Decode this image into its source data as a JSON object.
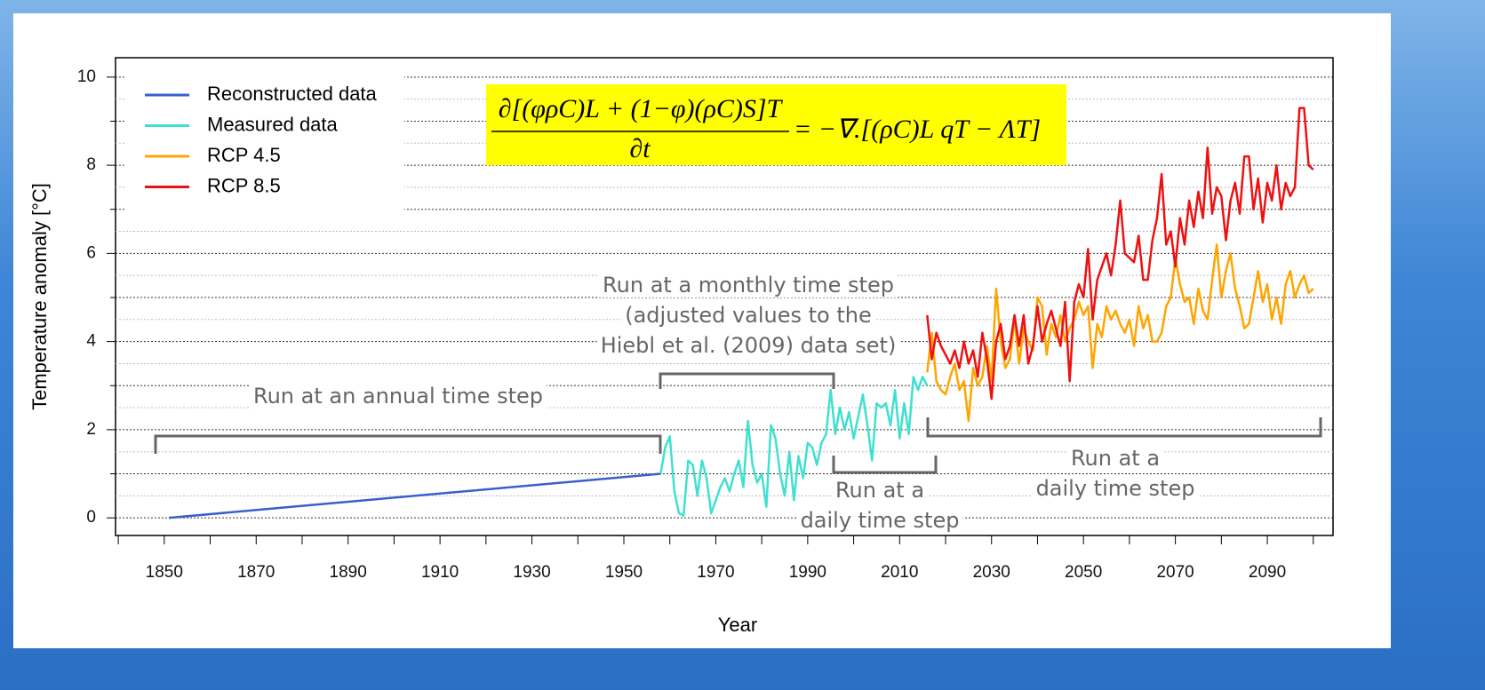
{
  "chart_data": {
    "type": "line",
    "xlabel": "Year",
    "ylabel": "Temperature anomaly [°C]",
    "xlim": [
      1839.4,
      2104.3
    ],
    "ylim": [
      -0.4,
      10.44
    ],
    "xticks": [
      1850,
      1870,
      1890,
      1910,
      1930,
      1950,
      1970,
      1990,
      2010,
      2030,
      2050,
      2070,
      2090
    ],
    "xminorticks": [
      1840,
      1860,
      1880,
      1900,
      1920,
      1940,
      1960,
      1980,
      2000,
      2020,
      2040,
      2060,
      2080,
      2100
    ],
    "yticks": [
      0,
      2,
      4,
      6,
      8,
      10
    ],
    "yminorticks": [
      1,
      3,
      5,
      7,
      9
    ],
    "yminorgrid": [
      0.5,
      1.5,
      2.5,
      3.5,
      4.5,
      5.5,
      6.5,
      7.5,
      8.5,
      9.5
    ],
    "grid": true,
    "legend_position": "upper-left",
    "series": [
      {
        "name": "Reconstructed data",
        "color": "#3a5fcd",
        "x": [
          1851,
          1958
        ],
        "values": [
          0,
          1.0
        ]
      },
      {
        "name": "Measured data",
        "color": "#40e0d0",
        "x": [
          1958,
          1959,
          1960,
          1961,
          1962,
          1963,
          1964,
          1965,
          1966,
          1967,
          1968,
          1969,
          1970,
          1971,
          1972,
          1973,
          1974,
          1975,
          1976,
          1977,
          1978,
          1979,
          1980,
          1981,
          1982,
          1983,
          1984,
          1985,
          1986,
          1987,
          1988,
          1989,
          1990,
          1991,
          1992,
          1993,
          1994,
          1995,
          1996,
          1997,
          1998,
          1999,
          2000,
          2001,
          2002,
          2003,
          2004,
          2005,
          2006,
          2007,
          2008,
          2009,
          2010,
          2011,
          2012,
          2013,
          2014,
          2015,
          2016
        ],
        "values": [
          1.0,
          1.6,
          1.85,
          0.6,
          0.1,
          0.05,
          1.3,
          1.2,
          0.5,
          1.3,
          0.9,
          0.1,
          0.4,
          0.7,
          0.9,
          0.6,
          1.0,
          1.3,
          0.7,
          2.2,
          1.2,
          0.8,
          1.0,
          0.25,
          2.1,
          1.8,
          1.0,
          0.5,
          1.5,
          0.4,
          1.4,
          0.9,
          1.7,
          1.6,
          1.2,
          1.7,
          1.9,
          2.9,
          1.9,
          2.5,
          2.0,
          2.4,
          1.8,
          2.3,
          2.8,
          2.1,
          1.3,
          2.6,
          2.5,
          2.6,
          2.1,
          2.9,
          1.8,
          2.6,
          1.9,
          3.2,
          2.9,
          3.2,
          3.0
        ]
      },
      {
        "name": "RCP 4.5",
        "color": "#ffa500",
        "x": [
          2016,
          2017,
          2018,
          2019,
          2020,
          2021,
          2022,
          2023,
          2024,
          2025,
          2026,
          2027,
          2028,
          2029,
          2030,
          2031,
          2032,
          2033,
          2034,
          2035,
          2036,
          2037,
          2038,
          2039,
          2040,
          2041,
          2042,
          2043,
          2044,
          2045,
          2046,
          2047,
          2048,
          2049,
          2050,
          2051,
          2052,
          2053,
          2054,
          2055,
          2056,
          2057,
          2058,
          2059,
          2060,
          2061,
          2062,
          2063,
          2064,
          2065,
          2066,
          2067,
          2068,
          2069,
          2070,
          2071,
          2072,
          2073,
          2074,
          2075,
          2076,
          2077,
          2078,
          2079,
          2080,
          2081,
          2082,
          2083,
          2084,
          2085,
          2086,
          2087,
          2088,
          2089,
          2090,
          2091,
          2092,
          2093,
          2094,
          2095,
          2096,
          2097,
          2098,
          2099,
          2100
        ],
        "values": [
          3.3,
          4.2,
          3.1,
          2.9,
          2.8,
          3.2,
          3.5,
          2.9,
          3.1,
          2.2,
          3.4,
          3.0,
          3.2,
          3.9,
          3.1,
          5.2,
          4.0,
          3.4,
          3.6,
          4.5,
          3.5,
          4.3,
          4.0,
          3.8,
          5.0,
          4.8,
          3.7,
          4.4,
          4.1,
          4.6,
          4.0,
          4.3,
          4.5,
          4.9,
          4.6,
          4.8,
          3.4,
          4.4,
          4.1,
          4.8,
          4.5,
          4.7,
          4.4,
          4.2,
          4.5,
          3.9,
          4.8,
          4.3,
          4.6,
          4.0,
          4.0,
          4.2,
          4.8,
          5.0,
          5.9,
          5.3,
          4.9,
          5.0,
          4.4,
          5.2,
          4.7,
          4.5,
          5.4,
          6.2,
          5.0,
          5.6,
          6.0,
          5.2,
          4.8,
          4.3,
          4.4,
          5.0,
          5.6,
          4.9,
          5.3,
          4.5,
          5.0,
          4.4,
          5.3,
          5.6,
          5.0,
          5.3,
          5.5,
          5.1,
          5.2
        ]
      },
      {
        "name": "RCP 8.5",
        "color": "#ee1111",
        "x": [
          2016,
          2017,
          2018,
          2019,
          2020,
          2021,
          2022,
          2023,
          2024,
          2025,
          2026,
          2027,
          2028,
          2029,
          2030,
          2031,
          2032,
          2033,
          2034,
          2035,
          2036,
          2037,
          2038,
          2039,
          2040,
          2041,
          2042,
          2043,
          2044,
          2045,
          2046,
          2047,
          2048,
          2049,
          2050,
          2051,
          2052,
          2053,
          2054,
          2055,
          2056,
          2057,
          2058,
          2059,
          2060,
          2061,
          2062,
          2063,
          2064,
          2065,
          2066,
          2067,
          2068,
          2069,
          2070,
          2071,
          2072,
          2073,
          2074,
          2075,
          2076,
          2077,
          2078,
          2079,
          2080,
          2081,
          2082,
          2083,
          2084,
          2085,
          2086,
          2087,
          2088,
          2089,
          2090,
          2091,
          2092,
          2093,
          2094,
          2095,
          2096,
          2097,
          2098,
          2099,
          2100
        ],
        "values": [
          4.6,
          3.6,
          4.2,
          3.9,
          3.7,
          3.5,
          3.8,
          3.4,
          4.0,
          3.5,
          3.8,
          3.2,
          4.2,
          3.6,
          2.7,
          4.0,
          4.4,
          3.6,
          3.9,
          4.6,
          3.9,
          4.6,
          3.5,
          3.9,
          4.8,
          4.0,
          4.4,
          4.7,
          4.3,
          3.9,
          4.9,
          3.1,
          4.9,
          5.3,
          5.0,
          6.1,
          4.5,
          5.4,
          5.7,
          6.0,
          5.5,
          6.2,
          7.2,
          6.0,
          5.9,
          5.8,
          6.4,
          5.4,
          5.4,
          6.3,
          6.8,
          7.8,
          6.2,
          6.5,
          5.7,
          6.8,
          6.2,
          7.2,
          6.6,
          7.4,
          6.8,
          8.4,
          6.9,
          7.5,
          7.3,
          6.3,
          7.2,
          7.6,
          6.9,
          8.2,
          8.2,
          7.0,
          7.7,
          6.7,
          7.6,
          7.2,
          8.0,
          7.0,
          7.6,
          7.3,
          7.5,
          9.3,
          9.3,
          8.0,
          7.9
        ]
      }
    ],
    "equation": {
      "numerator": "∂[(φρC)L + (1−φ)(ρC)S]T",
      "denominator": "∂t",
      "rhs": "= −∇.[(ρC)L qT − ΛT]"
    },
    "annotations": [
      {
        "lines": [
          "Run at an annual time step"
        ]
      },
      {
        "lines": [
          "Run at a monthly time step",
          "(adjusted values to the",
          "Hiebl et al. (2009) data set)"
        ]
      },
      {
        "lines": [
          "Run at a",
          "daily time step"
        ]
      },
      {
        "lines": [
          "Run at a",
          "daily time step"
        ]
      }
    ]
  }
}
